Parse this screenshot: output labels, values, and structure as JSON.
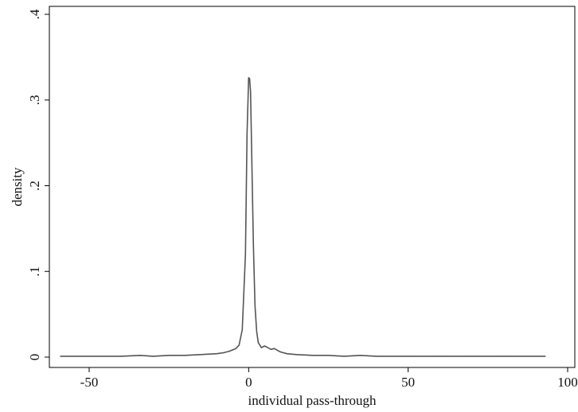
{
  "chart_data": {
    "type": "line",
    "title": "",
    "xlabel": "individual pass-through",
    "ylabel": "density",
    "xlim": [
      -60,
      100
    ],
    "ylim": [
      0,
      0.4
    ],
    "xticks": [
      -50,
      0,
      50,
      100
    ],
    "xtick_labels": [
      "-50",
      "0",
      "50",
      "100"
    ],
    "yticks": [
      0,
      0.1,
      0.2,
      0.3,
      0.4
    ],
    "ytick_labels": [
      "0",
      ".1",
      ".2",
      ".3",
      ".4"
    ],
    "grid": false,
    "series": [
      {
        "color": "#555555",
        "x": [
          -59,
          -40,
          -34,
          -30,
          -25,
          -20,
          -15,
          -10,
          -8,
          -6,
          -4,
          -3,
          -2,
          -1,
          -0.5,
          0,
          0.3,
          0.6,
          1,
          1.5,
          2,
          2.5,
          3,
          4,
          5,
          6,
          7,
          8,
          9,
          10,
          12,
          15,
          20,
          25,
          30,
          35,
          40,
          50,
          60,
          70,
          80,
          93
        ],
        "y": [
          0.001,
          0.001,
          0.002,
          0.001,
          0.002,
          0.002,
          0.003,
          0.004,
          0.005,
          0.007,
          0.01,
          0.014,
          0.032,
          0.12,
          0.26,
          0.326,
          0.325,
          0.31,
          0.23,
          0.13,
          0.06,
          0.03,
          0.017,
          0.011,
          0.013,
          0.011,
          0.009,
          0.01,
          0.008,
          0.006,
          0.004,
          0.003,
          0.002,
          0.002,
          0.001,
          0.002,
          0.001,
          0.001,
          0.001,
          0.001,
          0.001,
          0.001
        ]
      }
    ]
  }
}
